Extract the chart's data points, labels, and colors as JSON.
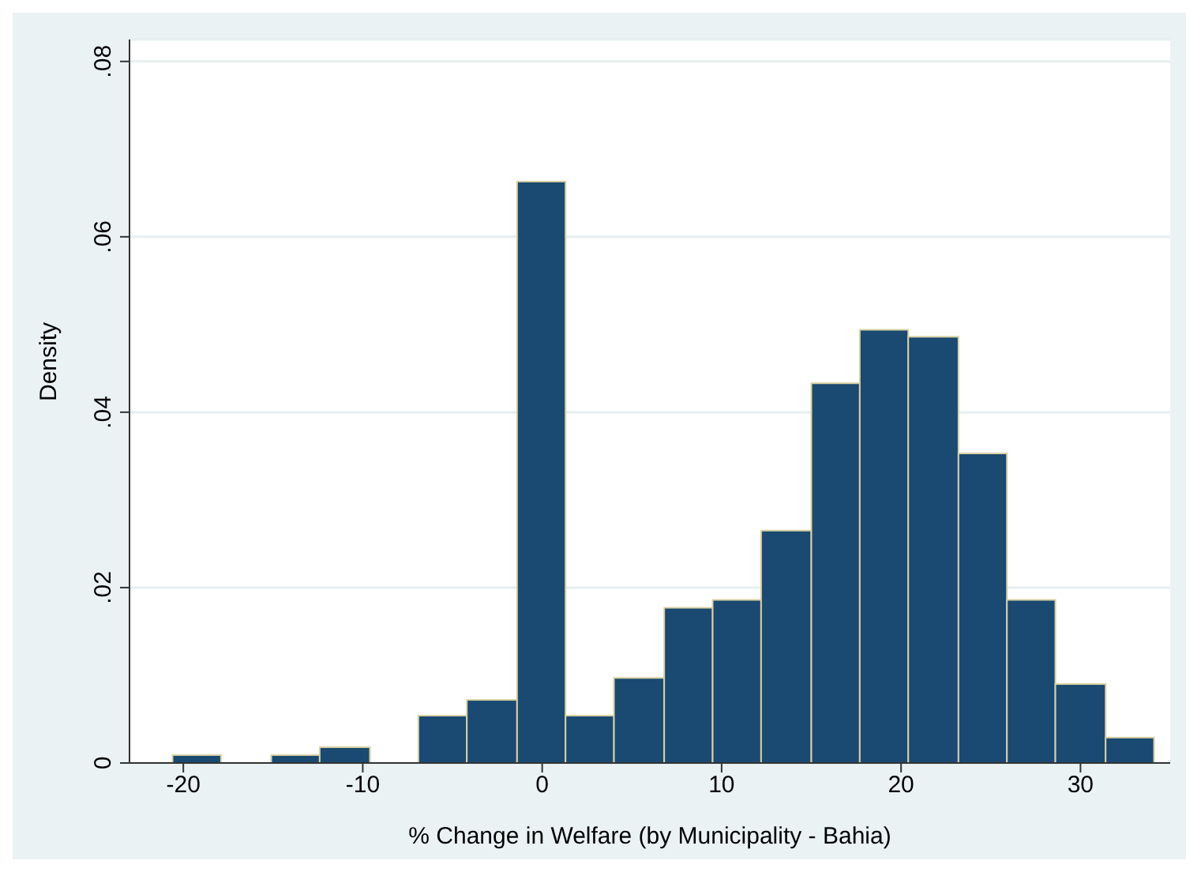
{
  "chart_data": {
    "type": "histogram",
    "xlabel": "% Change in Welfare (by Municipality - Bahia)",
    "ylabel": "Density",
    "bins": [
      -20.6,
      -17.9,
      -15.1,
      -12.4,
      -9.6,
      -6.9,
      -4.2,
      -1.4,
      1.3,
      4.0,
      6.8,
      9.5,
      12.2,
      15.0,
      17.7,
      20.4,
      23.2,
      25.9,
      28.6,
      31.4,
      34.1
    ],
    "values": [
      0.0009,
      0,
      0.0009,
      0.0018,
      0,
      0.0054,
      0.0072,
      0.0663,
      0.0054,
      0.0097,
      0.0177,
      0.0186,
      0.0265,
      0.0433,
      0.0494,
      0.0486,
      0.0353,
      0.0186,
      0.009,
      0.0029
    ],
    "color": "#1a4971",
    "xlim": [
      -23,
      35
    ],
    "xticks": [
      -20,
      -10,
      0,
      10,
      20,
      30
    ],
    "ylim": [
      0,
      0.0825
    ],
    "yticks": [
      {
        "value": 0,
        "label": "0"
      },
      {
        "value": 0.02,
        "label": ".02"
      },
      {
        "value": 0.04,
        "label": ".04"
      },
      {
        "value": 0.06,
        "label": ".06"
      },
      {
        "value": 0.08,
        "label": ".08"
      }
    ],
    "grid": "y"
  }
}
